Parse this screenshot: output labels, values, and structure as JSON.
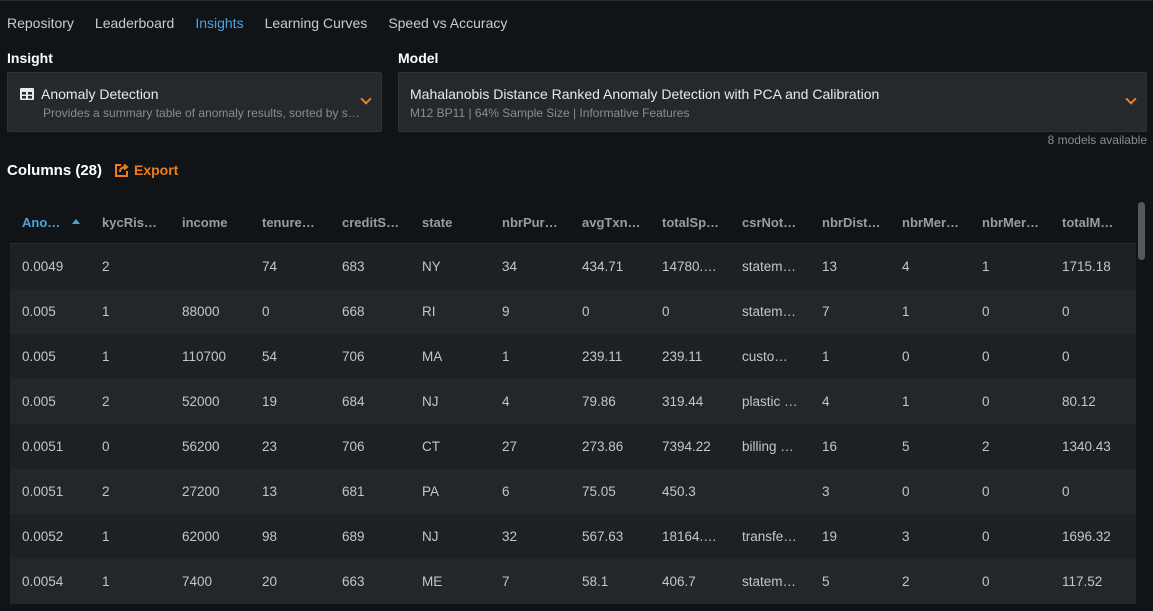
{
  "nav": {
    "tabs": [
      "Repository",
      "Leaderboard",
      "Insights",
      "Learning Curves",
      "Speed vs Accuracy"
    ],
    "active": 2
  },
  "insight": {
    "label": "Insight",
    "title": "Anomaly Detection",
    "subtitle": "Provides a summary table of anomaly results, sorted by s…",
    "icon": "table-icon"
  },
  "model": {
    "label": "Model",
    "title": "Mahalanobis Distance Ranked Anomaly Detection with PCA and Calibration",
    "subtitle": "M12 BP11 | 64% Sample Size | Informative Features",
    "available": "8 models available"
  },
  "columns_title": "Columns (28)",
  "export_label": "Export",
  "colors": {
    "accent": "#4aa3df",
    "orange": "#f07d1a",
    "bg": "#111416"
  },
  "table": {
    "headers": [
      "Ano…",
      "kycRis…",
      "income",
      "tenure…",
      "creditS…",
      "state",
      "nbrPur…",
      "avgTxn…",
      "totalSp…",
      "csrNot…",
      "nbrDist…",
      "nbrMer…",
      "nbrMer…",
      "totalM…"
    ],
    "rows": [
      [
        "0.0049",
        "2",
        "",
        "74",
        "683",
        "NY",
        "34",
        "434.71",
        "14780.…",
        "statem…",
        "13",
        "4",
        "1",
        "1715.18"
      ],
      [
        "0.005",
        "1",
        "88000",
        "0",
        "668",
        "RI",
        "9",
        "0",
        "0",
        "statem…",
        "7",
        "1",
        "0",
        "0"
      ],
      [
        "0.005",
        "1",
        "110700",
        "54",
        "706",
        "MA",
        "1",
        "239.11",
        "239.11",
        "custo…",
        "1",
        "0",
        "0",
        "0"
      ],
      [
        "0.005",
        "2",
        "52000",
        "19",
        "684",
        "NJ",
        "4",
        "79.86",
        "319.44",
        "plastic …",
        "4",
        "1",
        "0",
        "80.12"
      ],
      [
        "0.0051",
        "0",
        "56200",
        "23",
        "706",
        "CT",
        "27",
        "273.86",
        "7394.22",
        "billing …",
        "16",
        "5",
        "2",
        "1340.43"
      ],
      [
        "0.0051",
        "2",
        "27200",
        "13",
        "681",
        "PA",
        "6",
        "75.05",
        "450.3",
        "",
        "3",
        "0",
        "0",
        "0"
      ],
      [
        "0.0052",
        "1",
        "62000",
        "98",
        "689",
        "NJ",
        "32",
        "567.63",
        "18164.…",
        "transfe…",
        "19",
        "3",
        "0",
        "1696.32"
      ],
      [
        "0.0054",
        "1",
        "7400",
        "20",
        "663",
        "ME",
        "7",
        "58.1",
        "406.7",
        "statem…",
        "5",
        "2",
        "0",
        "117.52"
      ]
    ]
  }
}
